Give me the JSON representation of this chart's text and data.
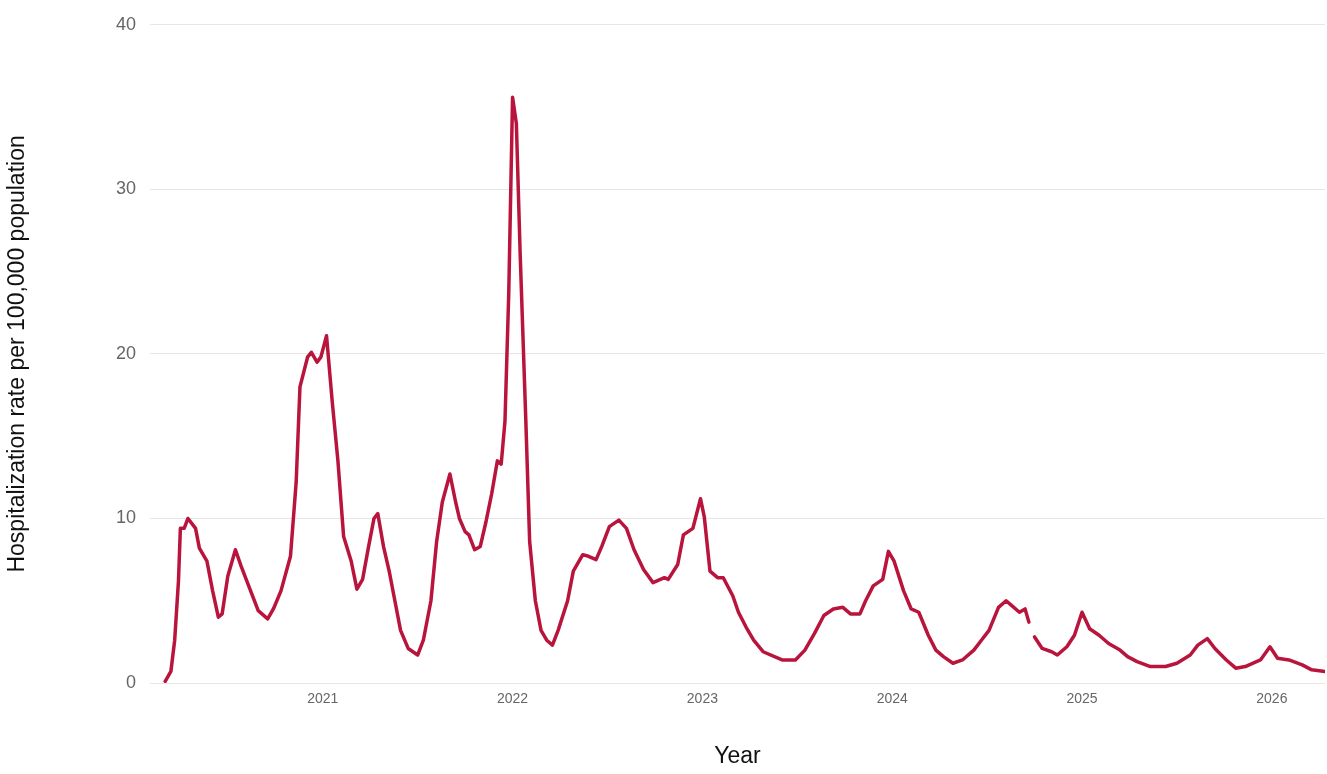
{
  "chart_data": {
    "type": "line",
    "xlabel": "Year",
    "ylabel": "Hospitalization rate per 100,000 population",
    "xlim": [
      2020.09,
      2026.28
    ],
    "xticks": [
      2021,
      2022,
      2023,
      2024,
      2025,
      2026
    ],
    "ylim": [
      0,
      40
    ],
    "yticks": [
      0,
      10,
      20,
      30,
      40
    ],
    "grid": "y",
    "legend": false,
    "marker": "none",
    "line_style": "solid",
    "x": [
      2020.17,
      2020.2,
      2020.22,
      2020.24,
      2020.25,
      2020.27,
      2020.29,
      2020.33,
      2020.35,
      2020.39,
      2020.42,
      2020.45,
      2020.47,
      2020.5,
      2020.54,
      2020.57,
      2020.62,
      2020.66,
      2020.71,
      2020.74,
      2020.78,
      2020.83,
      2020.86,
      2020.88,
      2020.92,
      2020.94,
      2020.97,
      2020.99,
      2021.02,
      2021.05,
      2021.08,
      2021.11,
      2021.15,
      2021.18,
      2021.21,
      2021.24,
      2021.27,
      2021.29,
      2021.32,
      2021.35,
      2021.38,
      2021.41,
      2021.45,
      2021.5,
      2021.53,
      2021.57,
      2021.6,
      2021.63,
      2021.67,
      2021.7,
      2021.72,
      2021.75,
      2021.77,
      2021.8,
      2021.83,
      2021.86,
      2021.89,
      2021.92,
      2021.94,
      2021.96,
      2021.98,
      2022.0,
      2022.02,
      2022.04,
      2022.07,
      2022.09,
      2022.12,
      2022.15,
      2022.18,
      2022.21,
      2022.24,
      2022.29,
      2022.32,
      2022.37,
      2022.4,
      2022.44,
      2022.47,
      2022.51,
      2022.56,
      2022.6,
      2022.64,
      2022.69,
      2022.74,
      2022.8,
      2022.82,
      2022.87,
      2022.9,
      2022.95,
      2022.99,
      2023.01,
      2023.04,
      2023.08,
      2023.11,
      2023.16,
      2023.19,
      2023.23,
      2023.27,
      2023.32,
      2023.42,
      2023.49,
      2023.54,
      2023.59,
      2023.64,
      2023.69,
      2023.74,
      2023.78,
      2023.83,
      2023.86,
      2023.9,
      2023.95,
      2023.98,
      2024.01,
      2024.06,
      2024.1,
      2024.14,
      2024.19,
      2024.23,
      2024.27,
      2024.32,
      2024.37,
      2024.43,
      2024.47,
      2024.51,
      2024.56,
      2024.6,
      2024.63,
      2024.67,
      2024.7,
      2024.72,
      2024.73,
      2024.75,
      2024.79,
      2024.84,
      2024.87,
      2024.92,
      2024.96,
      2025.0,
      2025.04,
      2025.09,
      2025.14,
      2025.2,
      2025.24,
      2025.29,
      2025.36,
      2025.44,
      2025.5,
      2025.57,
      2025.61,
      2025.66,
      2025.7,
      2025.76,
      2025.81,
      2025.86,
      2025.94,
      2025.99,
      2026.03,
      2026.09,
      2026.16,
      2026.21,
      2026.28
    ],
    "series": [
      {
        "color": "#b9143c",
        "values": [
          0.1,
          0.7,
          2.6,
          6.2,
          9.4,
          9.4,
          10.0,
          9.4,
          8.2,
          7.4,
          5.6,
          4.0,
          4.2,
          6.5,
          8.1,
          7.1,
          5.6,
          4.4,
          3.9,
          4.5,
          5.6,
          7.7,
          12.2,
          18.0,
          19.8,
          20.1,
          19.5,
          19.8,
          21.1,
          17.1,
          13.5,
          8.9,
          7.4,
          5.7,
          6.3,
          8.2,
          10.0,
          10.3,
          8.3,
          6.8,
          5.0,
          3.2,
          2.1,
          1.7,
          2.6,
          5.0,
          8.6,
          11.0,
          12.7,
          11.0,
          10.0,
          9.2,
          9.0,
          8.1,
          8.3,
          9.8,
          11.5,
          13.5,
          13.3,
          15.9,
          23.7,
          35.6,
          34.0,
          26.1,
          15.9,
          8.6,
          5.0,
          3.2,
          2.6,
          2.3,
          3.2,
          5.0,
          6.8,
          7.8,
          7.7,
          7.5,
          8.3,
          9.5,
          9.9,
          9.4,
          8.1,
          6.9,
          6.1,
          6.4,
          6.3,
          7.2,
          9.0,
          9.4,
          11.2,
          10.1,
          6.8,
          6.4,
          6.4,
          5.3,
          4.3,
          3.4,
          2.6,
          1.9,
          1.4,
          1.4,
          2.0,
          3.0,
          4.1,
          4.5,
          4.6,
          4.2,
          4.2,
          5.0,
          5.9,
          6.3,
          8.0,
          7.4,
          5.6,
          4.5,
          4.3,
          2.9,
          2.0,
          1.6,
          1.2,
          1.4,
          2.0,
          2.6,
          3.2,
          4.6,
          5.0,
          4.7,
          4.3,
          4.5,
          3.7,
          null,
          2.8,
          2.1,
          1.9,
          1.7,
          2.2,
          2.9,
          4.3,
          3.3,
          2.9,
          2.4,
          2.0,
          1.6,
          1.3,
          1.0,
          1.0,
          1.2,
          1.7,
          2.3,
          2.7,
          2.1,
          1.4,
          0.9,
          1.0,
          1.4,
          2.2,
          1.5,
          1.4,
          1.1,
          0.8,
          0.7
        ]
      }
    ]
  }
}
